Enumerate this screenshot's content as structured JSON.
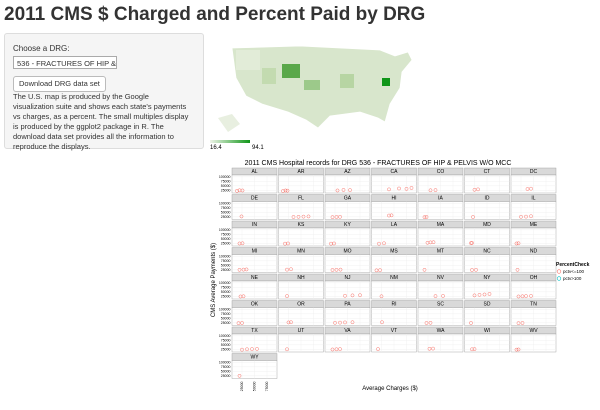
{
  "header": {
    "title": "2011 CMS $ Charged and Percent Paid by DRG"
  },
  "sidebar": {
    "select_label": "Choose a DRG:",
    "select_value": "536 - FRACTURES OF HIP &",
    "button": "Download DRG data set",
    "description": "The U.S. map is produced by the Google visualization suite and shows each state's payments vs charges, as a percent. The small multiples display is produced by the ggplot2 package in R. The download data set provides all the information to reproduce the displays."
  },
  "map": {
    "legend_min": "16.4",
    "legend_max": "94.1"
  },
  "chart_data": {
    "type": "scatter",
    "title": "2011 CMS Hospital records for DRG  536 - FRACTURES OF HIP & PELVIS W/O MCC",
    "x_label": "Average Charges ($)",
    "y_label": "CMS Average Payments ($)",
    "legend_title": "PercentCheck",
    "series": [
      {
        "name": "pctv<=100",
        "color": "#f8766d"
      },
      {
        "name": "pctv>100",
        "color": "#00bfc4"
      }
    ],
    "xlim": [
      5000,
      95000
    ],
    "xticks": [
      25000,
      50000,
      75000
    ],
    "ylim": [
      10000,
      110000
    ],
    "yticks": [
      25000,
      50000,
      75000,
      100000
    ],
    "panels": [
      {
        "state": "AL",
        "x": [
          15000,
          20000,
          26000
        ],
        "y": [
          22000,
          25000,
          24000
        ]
      },
      {
        "state": "AR",
        "x": [
          14000,
          19000,
          23000
        ],
        "y": [
          21000,
          24000,
          23000
        ]
      },
      {
        "state": "AZ",
        "x": [
          30000,
          42000,
          55000
        ],
        "y": [
          24000,
          27000,
          26000
        ]
      },
      {
        "state": "CA",
        "x": [
          40000,
          60000,
          75000,
          85000
        ],
        "y": [
          30000,
          35000,
          33000,
          38000
        ]
      },
      {
        "state": "CO",
        "x": [
          30000,
          40000
        ],
        "y": [
          25000,
          26000
        ]
      },
      {
        "state": "CT",
        "x": [
          25000,
          32000
        ],
        "y": [
          28000,
          30000
        ]
      },
      {
        "state": "DC",
        "x": [
          38000,
          45000
        ],
        "y": [
          32000,
          34000
        ]
      },
      {
        "state": "DE",
        "x": [
          24000
        ],
        "y": [
          27000
        ]
      },
      {
        "state": "FL",
        "x": [
          35000,
          45000,
          55000,
          65000
        ],
        "y": [
          24000,
          25000,
          26000,
          27000
        ]
      },
      {
        "state": "GA",
        "x": [
          20000,
          28000,
          35000
        ],
        "y": [
          23000,
          24000,
          25000
        ]
      },
      {
        "state": "HI",
        "x": [
          40000,
          45000
        ],
        "y": [
          32000,
          33000
        ]
      },
      {
        "state": "IA",
        "x": [
          18000,
          22000
        ],
        "y": [
          23000,
          24000
        ]
      },
      {
        "state": "ID",
        "x": [
          22000
        ],
        "y": [
          24000
        ]
      },
      {
        "state": "IL",
        "x": [
          25000,
          35000,
          45000
        ],
        "y": [
          25000,
          26000,
          28000
        ]
      },
      {
        "state": "IN",
        "x": [
          20000,
          26000
        ],
        "y": [
          24000,
          25000
        ]
      },
      {
        "state": "KS",
        "x": [
          18000,
          24000
        ],
        "y": [
          23000,
          24000
        ]
      },
      {
        "state": "KY",
        "x": [
          17000,
          23000
        ],
        "y": [
          23000,
          24000
        ]
      },
      {
        "state": "LA",
        "x": [
          20000,
          30000
        ],
        "y": [
          23000,
          25000
        ]
      },
      {
        "state": "MA",
        "x": [
          24000,
          30000,
          36000
        ],
        "y": [
          28000,
          30000,
          31000
        ]
      },
      {
        "state": "MD",
        "x": [
          18000,
          20000
        ],
        "y": [
          26000,
          27000
        ]
      },
      {
        "state": "ME",
        "x": [
          16000,
          20000
        ],
        "y": [
          24000,
          25000
        ]
      },
      {
        "state": "MI",
        "x": [
          20000,
          28000,
          34000
        ],
        "y": [
          25000,
          26000,
          27000
        ]
      },
      {
        "state": "MN",
        "x": [
          22000,
          30000
        ],
        "y": [
          26000,
          28000
        ]
      },
      {
        "state": "MO",
        "x": [
          20000,
          28000,
          36000
        ],
        "y": [
          24000,
          25000,
          26000
        ]
      },
      {
        "state": "MS",
        "x": [
          15000,
          22000
        ],
        "y": [
          22000,
          23000
        ]
      },
      {
        "state": "MT",
        "x": [
          18000
        ],
        "y": [
          25000
        ]
      },
      {
        "state": "NC",
        "x": [
          20000,
          28000
        ],
        "y": [
          24000,
          25000
        ]
      },
      {
        "state": "ND",
        "x": [
          18000
        ],
        "y": [
          25000
        ]
      },
      {
        "state": "NE",
        "x": [
          22000,
          28000
        ],
        "y": [
          24000,
          25000
        ]
      },
      {
        "state": "NH",
        "x": [
          22000
        ],
        "y": [
          26000
        ]
      },
      {
        "state": "NJ",
        "x": [
          45000,
          60000,
          75000
        ],
        "y": [
          28000,
          30000,
          31000
        ]
      },
      {
        "state": "NM",
        "x": [
          25000
        ],
        "y": [
          25000
        ]
      },
      {
        "state": "NV",
        "x": [
          40000,
          55000
        ],
        "y": [
          26000,
          27000
        ]
      },
      {
        "state": "NY",
        "x": [
          25000,
          35000,
          45000,
          55000
        ],
        "y": [
          30000,
          33000,
          35000,
          38000
        ]
      },
      {
        "state": "OH",
        "x": [
          20000,
          28000,
          35000,
          45000
        ],
        "y": [
          24000,
          25000,
          26000,
          27000
        ]
      },
      {
        "state": "OK",
        "x": [
          18000,
          25000
        ],
        "y": [
          23000,
          24000
        ]
      },
      {
        "state": "OR",
        "x": [
          25000,
          30000
        ],
        "y": [
          27000,
          28000
        ]
      },
      {
        "state": "PA",
        "x": [
          25000,
          35000,
          45000,
          60000
        ],
        "y": [
          25000,
          26000,
          27000,
          28000
        ]
      },
      {
        "state": "RI",
        "x": [
          26000
        ],
        "y": [
          28000
        ]
      },
      {
        "state": "SC",
        "x": [
          22000,
          30000
        ],
        "y": [
          24000,
          25000
        ]
      },
      {
        "state": "SD",
        "x": [
          18000
        ],
        "y": [
          24000
        ]
      },
      {
        "state": "TN",
        "x": [
          20000,
          28000
        ],
        "y": [
          23000,
          24000
        ]
      },
      {
        "state": "TX",
        "x": [
          25000,
          35000,
          45000,
          55000
        ],
        "y": [
          23000,
          25000,
          26000,
          27000
        ]
      },
      {
        "state": "UT",
        "x": [
          22000
        ],
        "y": [
          25000
        ]
      },
      {
        "state": "VA",
        "x": [
          20000,
          28000,
          35000
        ],
        "y": [
          24000,
          25000,
          26000
        ]
      },
      {
        "state": "VT",
        "x": [
          18000
        ],
        "y": [
          26000
        ]
      },
      {
        "state": "WA",
        "x": [
          28000,
          35000
        ],
        "y": [
          28000,
          29000
        ]
      },
      {
        "state": "WI",
        "x": [
          20000,
          25000
        ],
        "y": [
          25000,
          26000
        ]
      },
      {
        "state": "WV",
        "x": [
          16000,
          20000
        ],
        "y": [
          23000,
          24000
        ]
      },
      {
        "state": "WY",
        "x": [
          20000
        ],
        "y": [
          25000
        ]
      }
    ]
  }
}
